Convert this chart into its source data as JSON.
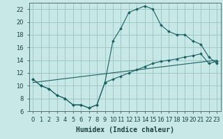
{
  "xlabel": "Humidex (Indice chaleur)",
  "bg_color": "#c8e8e8",
  "grid_color": "#a0c8c8",
  "line_color": "#1a6060",
  "xlim": [
    -0.5,
    23.5
  ],
  "ylim": [
    6,
    23
  ],
  "xticks": [
    0,
    1,
    2,
    3,
    4,
    5,
    6,
    7,
    8,
    9,
    10,
    11,
    12,
    13,
    14,
    15,
    16,
    17,
    18,
    19,
    20,
    21,
    22,
    23
  ],
  "yticks": [
    6,
    8,
    10,
    12,
    14,
    16,
    18,
    20,
    22
  ],
  "curve1_x": [
    0,
    1,
    2,
    3,
    4,
    5,
    6,
    7,
    8,
    9,
    10,
    11,
    12,
    13,
    14,
    15,
    16,
    17,
    18,
    19,
    20,
    21,
    22,
    23
  ],
  "curve1_y": [
    11,
    10,
    9.5,
    8.5,
    8,
    7,
    7,
    6.5,
    7,
    10.5,
    17,
    19,
    21.5,
    22,
    22.5,
    22,
    19.5,
    18.5,
    18,
    18,
    17,
    16.5,
    14.5,
    13.5
  ],
  "curve2_x": [
    0,
    1,
    2,
    3,
    4,
    5,
    6,
    7,
    8,
    9,
    10,
    11,
    12,
    13,
    14,
    15,
    16,
    17,
    18,
    19,
    20,
    21,
    22,
    23
  ],
  "curve2_y": [
    11,
    10,
    9.5,
    8.5,
    8,
    7,
    7,
    6.5,
    7,
    10.5,
    11.0,
    11.5,
    12.0,
    12.5,
    13.0,
    13.5,
    13.8,
    14.0,
    14.2,
    14.5,
    14.7,
    15.0,
    13.5,
    13.8
  ],
  "trend_x": [
    0,
    23
  ],
  "trend_y": [
    10.5,
    14.0
  ],
  "xlabel_fontsize": 7,
  "tick_fontsize": 6
}
